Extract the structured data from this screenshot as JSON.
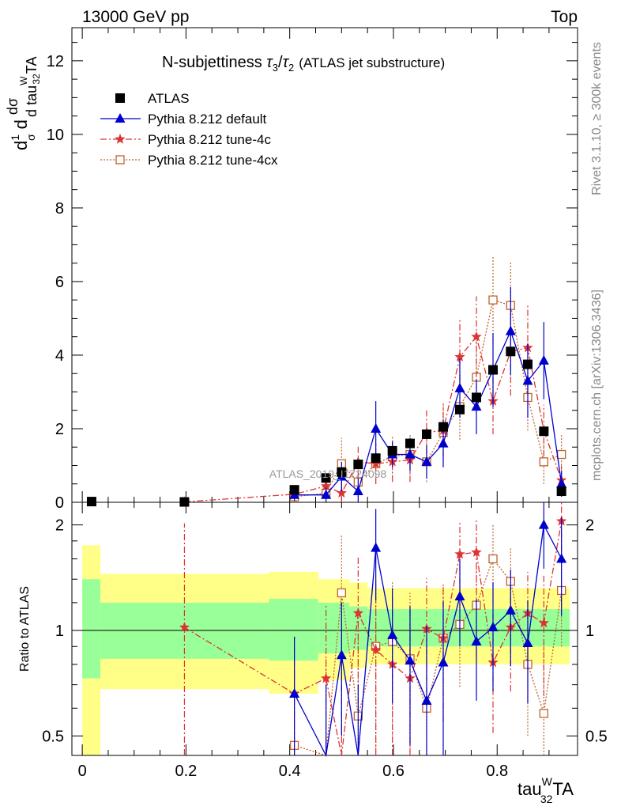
{
  "header": {
    "left": "13000 GeV pp",
    "right": "Top"
  },
  "side_labels": {
    "events": "Rivet 3.1.10, ≥ 300k events",
    "url": "mcplots.cern.ch [arXiv:1306.3436]"
  },
  "watermark": "ATLAS_2019_I1724098",
  "chart_data": {
    "type": "scatter",
    "title": "N-subjettiness τ₃/τ₂ (ATLAS jet substructure)",
    "title_main": "N-subjettiness ",
    "title_sub": "(ATLAS jet substructure)",
    "ylabel": "1/σ dσ/d tau^W_32 TA",
    "xlabel": "tau^W_32 TA",
    "ratio_ylabel": "Ratio to ATLAS",
    "xlim": [
      -0.02,
      0.955
    ],
    "ylim": [
      0,
      12.9
    ],
    "ratio_ylim": [
      0.44,
      2.32
    ],
    "x_ticks": [
      0,
      0.2,
      0.4,
      0.6,
      0.8
    ],
    "x_tick_labels": [
      "0",
      "0.2",
      "0.4",
      "0.6",
      "0.8"
    ],
    "y_ticks": [
      0,
      2,
      4,
      6,
      8,
      10,
      12
    ],
    "y_tick_labels": [
      "0",
      "2",
      "4",
      "6",
      "8",
      "10",
      "12"
    ],
    "ratio_ticks": [
      0.5,
      1,
      2
    ],
    "ratio_tick_labels": [
      "0.5",
      "1",
      "2"
    ],
    "legend": [
      {
        "name": "ATLAS",
        "color": "#000000",
        "marker": "square",
        "line": "none"
      },
      {
        "name": "Pythia 8.212 default",
        "color": "#0000cc",
        "marker": "triangle",
        "line": "solid"
      },
      {
        "name": "Pythia 8.212 tune-4c",
        "color": "#dd3333",
        "marker": "star",
        "line": "dashdot"
      },
      {
        "name": "Pythia 8.212 tune-4cx",
        "color": "#c0622b",
        "marker": "open-square",
        "line": "dotted"
      }
    ],
    "x": [
      0.018,
      0.197,
      0.409,
      0.47,
      0.5,
      0.532,
      0.566,
      0.598,
      0.632,
      0.664,
      0.696,
      0.728,
      0.76,
      0.792,
      0.826,
      0.859,
      0.89,
      0.924
    ],
    "atlas": [
      0.02,
      0.01,
      0.34,
      0.66,
      0.82,
      1.03,
      1.2,
      1.4,
      1.6,
      1.85,
      2.05,
      2.52,
      2.85,
      3.6,
      4.1,
      3.75,
      1.93,
      0.3
    ],
    "default": [
      null,
      null,
      0.2,
      0.2,
      0.7,
      0.3,
      2.0,
      1.3,
      1.3,
      1.1,
      1.6,
      3.1,
      2.6,
      3.6,
      4.65,
      3.3,
      3.85,
      0.5
    ],
    "default_err": [
      null,
      null,
      0.15,
      0.2,
      0.4,
      0.35,
      0.75,
      0.35,
      0.45,
      0.45,
      0.65,
      0.8,
      0.75,
      1.0,
      1.2,
      1.0,
      1.05,
      0.35
    ],
    "tune4c": [
      null,
      0.01,
      0.22,
      0.44,
      0.25,
      1.1,
      1.05,
      1.1,
      1.15,
      1.9,
      1.95,
      3.95,
      4.5,
      2.75,
      4.1,
      4.2,
      1.95,
      0.6
    ],
    "tune4c_err": [
      null,
      0.01,
      0.2,
      0.35,
      0.4,
      0.45,
      0.55,
      0.55,
      0.6,
      0.6,
      0.7,
      1.0,
      1.1,
      0.9,
      1.2,
      1.2,
      0.7,
      0.4
    ],
    "tune4cx": [
      null,
      null,
      0.15,
      0.25,
      1.05,
      0.55,
      1.05,
      1.25,
      1.3,
      1.1,
      1.9,
      2.6,
      3.4,
      5.5,
      5.35,
      2.85,
      1.1,
      1.3
    ],
    "tune4cx_err": [
      null,
      null,
      0.15,
      0.25,
      0.7,
      0.5,
      0.55,
      0.55,
      0.55,
      0.55,
      0.8,
      0.9,
      1.0,
      1.2,
      1.2,
      0.9,
      0.6,
      0.55
    ],
    "ratio_default": [
      null,
      null,
      0.66,
      0.3,
      0.85,
      0.3,
      1.72,
      0.97,
      0.82,
      0.63,
      0.81,
      1.25,
      0.93,
      1.02,
      1.14,
      0.92,
      2.0,
      1.6
    ],
    "ratio_tune4c": [
      null,
      1.02,
      0.66,
      0.73,
      0.3,
      1.12,
      0.88,
      0.8,
      0.73,
      1.01,
      0.95,
      1.65,
      1.67,
      0.81,
      1.02,
      1.12,
      1.05,
      2.05
    ],
    "ratio_tune4cx": [
      null,
      null,
      0.47,
      0.39,
      1.28,
      0.57,
      0.9,
      0.93,
      0.83,
      0.6,
      0.95,
      1.04,
      1.18,
      1.6,
      1.38,
      0.8,
      0.58,
      1.3
    ],
    "ratio_err_default": [
      null,
      null,
      0.3,
      0.4,
      0.35,
      0.4,
      0.5,
      0.35,
      0.35,
      0.4,
      0.4,
      0.35,
      0.3,
      0.35,
      0.35,
      0.3,
      0.5,
      0.5
    ],
    "ratio_err_tune4c": [
      null,
      1.0,
      0.3,
      0.45,
      0.4,
      0.5,
      0.5,
      0.45,
      0.45,
      0.4,
      0.4,
      0.4,
      0.4,
      0.3,
      0.35,
      0.35,
      0.4,
      0.5
    ],
    "ratio_err_tune4cx": [
      null,
      null,
      0.3,
      0.45,
      0.6,
      0.5,
      0.5,
      0.45,
      0.45,
      0.35,
      0.4,
      0.35,
      0.35,
      0.4,
      0.35,
      0.3,
      0.35,
      0.4
    ],
    "bands": [
      {
        "x0": 0.0,
        "x1": 0.035,
        "in": [
          0.73,
          1.4
        ],
        "out": [
          0.44,
          1.75
        ]
      },
      {
        "x0": 0.035,
        "x1": 0.36,
        "in": [
          0.83,
          1.2
        ],
        "out": [
          0.68,
          1.45
        ]
      },
      {
        "x0": 0.36,
        "x1": 0.455,
        "in": [
          0.82,
          1.23
        ],
        "out": [
          0.66,
          1.47
        ]
      },
      {
        "x0": 0.455,
        "x1": 0.515,
        "in": [
          0.86,
          1.2
        ],
        "out": [
          0.72,
          1.4
        ]
      },
      {
        "x0": 0.515,
        "x1": 0.55,
        "in": [
          0.88,
          1.17
        ],
        "out": [
          0.78,
          1.37
        ]
      },
      {
        "x0": 0.55,
        "x1": 0.94,
        "in": [
          0.9,
          1.15
        ],
        "out": [
          0.8,
          1.32
        ]
      }
    ]
  }
}
